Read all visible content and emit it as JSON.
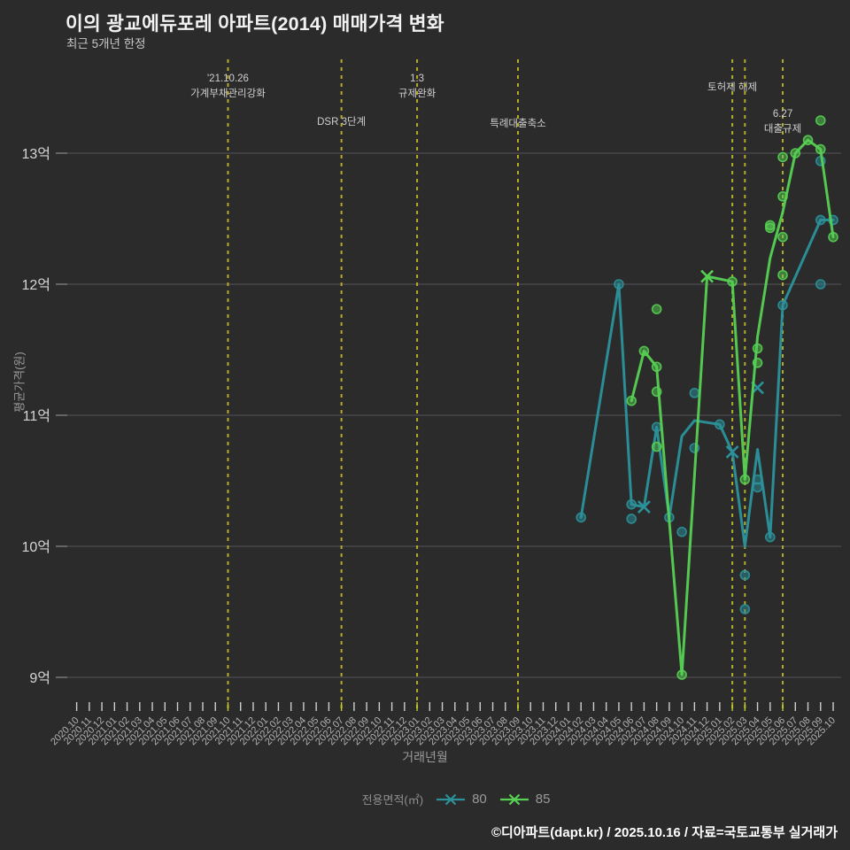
{
  "header": {
    "title": "이의 광교에듀포레 아파트(2014) 매매가격 변화",
    "subtitle": "최근 5개년 한정"
  },
  "legend": {
    "title": "전용면적(㎡)",
    "items": [
      {
        "label": "80",
        "color": "#2b929b"
      },
      {
        "label": "85",
        "color": "#56d152"
      }
    ]
  },
  "footer": {
    "text": "©디아파트(dapt.kr) / 2025.10.16 / 자료=국토교통부 실거래가"
  },
  "colors": {
    "background": "#2b2b2b",
    "grid": "#56565a",
    "grid_tick": "#8a8a8a",
    "axis_text": "#b3b3b3",
    "y_label_text": "#d6d6d6",
    "event_line": "#b3ad2c",
    "event_text": "#cfcfcf",
    "tick_mark": "#cfcfcf",
    "tick_mark_highlight": "#c9c930"
  },
  "chart_data": {
    "type": "line",
    "title": "이의 광교에듀포레 아파트(2014) 매매가격 변화",
    "xlabel": "거래년월",
    "ylabel": "평균가격(원)",
    "ylim": [
      8.8,
      13.7
    ],
    "unit": "억",
    "y_ticks": [
      {
        "v": 9,
        "label": "9억"
      },
      {
        "v": 10,
        "label": "10억"
      },
      {
        "v": 11,
        "label": "11억"
      },
      {
        "v": 12,
        "label": "12억"
      },
      {
        "v": 13,
        "label": "13억"
      }
    ],
    "x_ticks": [
      "2020.10",
      "2020.11",
      "2020.12",
      "2021.01",
      "2021.02",
      "2021.03",
      "2021.04",
      "2021.05",
      "2021.06",
      "2021.07",
      "2021.08",
      "2021.09",
      "2021.10",
      "2021.11",
      "2021.12",
      "2022.01",
      "2022.02",
      "2022.03",
      "2022.04",
      "2022.05",
      "2022.06",
      "2022.07",
      "2022.08",
      "2022.09",
      "2022.10",
      "2022.11",
      "2022.12",
      "2023.01",
      "2023.02",
      "2023.03",
      "2023.04",
      "2023.05",
      "2023.06",
      "2023.07",
      "2023.08",
      "2023.09",
      "2023.10",
      "2023.11",
      "2023.12",
      "2024.01",
      "2024.02",
      "2024.03",
      "2024.04",
      "2024.05",
      "2024.06",
      "2024.07",
      "2024.08",
      "2024.09",
      "2024.10",
      "2024.11",
      "2024.12",
      "2025.01",
      "2025.02",
      "2025.03",
      "2025.04",
      "2025.05",
      "2025.06",
      "2025.07",
      "2025.08",
      "2025.09",
      "2025.10"
    ],
    "events": [
      {
        "month": "2021.10",
        "lines": [
          "'21.10.26",
          "가계부채관리강화"
        ],
        "label_y": 92
      },
      {
        "month": "2022.07",
        "lines": [
          "DSR 3단계"
        ],
        "label_y": 141
      },
      {
        "month": "2023.01",
        "lines": [
          "1.3",
          "규제완화"
        ],
        "label_y": 92
      },
      {
        "month": "2023.09",
        "lines": [
          "특례대출축소"
        ],
        "label_y": 143
      },
      {
        "month": "2025.02",
        "lines": [
          "토허제 해제"
        ],
        "label_y": 102
      },
      {
        "month": "2025.03",
        "lines": [],
        "label_y": 0
      },
      {
        "month": "2025.06",
        "lines": [
          "6.27",
          "대출규제"
        ],
        "label_y": 132
      }
    ],
    "series": [
      {
        "name": "80",
        "color": "#2b929b",
        "line": [
          [
            "2024.02",
            10.22
          ],
          [
            "2024.05",
            12.0
          ],
          [
            "2024.06",
            10.32
          ],
          [
            "2024.07",
            10.3
          ],
          [
            "2024.08",
            10.91
          ],
          [
            "2024.09",
            10.22
          ],
          [
            "2024.10",
            10.84
          ],
          [
            "2024.11",
            10.96
          ],
          [
            "2025.01",
            10.93
          ],
          [
            "2025.02",
            10.72
          ],
          [
            "2025.03",
            10.0
          ],
          [
            "2025.04",
            10.74
          ],
          [
            "2025.05",
            10.07
          ],
          [
            "2025.06",
            11.84
          ],
          [
            "2025.09",
            12.49
          ],
          [
            "2025.10",
            12.49
          ]
        ],
        "dots": [
          [
            "2024.02",
            10.22
          ],
          [
            "2024.05",
            12.0
          ],
          [
            "2024.06",
            10.32
          ],
          [
            "2024.06",
            10.21
          ],
          [
            "2024.08",
            10.91
          ],
          [
            "2024.09",
            10.22
          ],
          [
            "2024.10",
            10.11
          ],
          [
            "2024.11",
            11.17
          ],
          [
            "2024.11",
            10.75
          ],
          [
            "2025.01",
            10.93
          ],
          [
            "2025.03",
            9.78
          ],
          [
            "2025.03",
            9.52
          ],
          [
            "2025.04",
            10.51
          ],
          [
            "2025.04",
            10.45
          ],
          [
            "2025.05",
            10.07
          ],
          [
            "2025.06",
            11.84
          ],
          [
            "2025.09",
            12.94
          ],
          [
            "2025.09",
            12.49
          ],
          [
            "2025.09",
            12.0
          ],
          [
            "2025.10",
            12.49
          ]
        ],
        "x_markers": [
          [
            "2024.07",
            10.3
          ],
          [
            "2025.02",
            10.72
          ],
          [
            "2025.04",
            11.21
          ]
        ]
      },
      {
        "name": "85",
        "color": "#56d152",
        "line": [
          [
            "2024.06",
            11.11
          ],
          [
            "2024.07",
            11.49
          ],
          [
            "2024.08",
            11.37
          ],
          [
            "2024.10",
            9.02
          ],
          [
            "2024.12",
            12.06
          ],
          [
            "2025.02",
            12.02
          ],
          [
            "2025.03",
            10.51
          ],
          [
            "2025.04",
            11.6
          ],
          [
            "2025.05",
            12.2
          ],
          [
            "2025.06",
            12.55
          ],
          [
            "2025.07",
            13.0
          ],
          [
            "2025.08",
            13.1
          ],
          [
            "2025.09",
            13.03
          ],
          [
            "2025.10",
            12.36
          ]
        ],
        "dots": [
          [
            "2024.06",
            11.11
          ],
          [
            "2024.07",
            11.49
          ],
          [
            "2024.08",
            11.81
          ],
          [
            "2024.08",
            11.37
          ],
          [
            "2024.08",
            11.18
          ],
          [
            "2024.08",
            10.76
          ],
          [
            "2024.10",
            9.02
          ],
          [
            "2025.02",
            12.02
          ],
          [
            "2025.03",
            10.51
          ],
          [
            "2025.04",
            11.51
          ],
          [
            "2025.04",
            11.4
          ],
          [
            "2025.05",
            12.45
          ],
          [
            "2025.05",
            12.43
          ],
          [
            "2025.06",
            12.97
          ],
          [
            "2025.06",
            12.67
          ],
          [
            "2025.06",
            12.36
          ],
          [
            "2025.06",
            12.07
          ],
          [
            "2025.07",
            13.0
          ],
          [
            "2025.08",
            13.1
          ],
          [
            "2025.09",
            13.25
          ],
          [
            "2025.09",
            13.03
          ],
          [
            "2025.10",
            12.36
          ]
        ],
        "x_markers": [
          [
            "2024.12",
            12.06
          ]
        ]
      }
    ]
  }
}
